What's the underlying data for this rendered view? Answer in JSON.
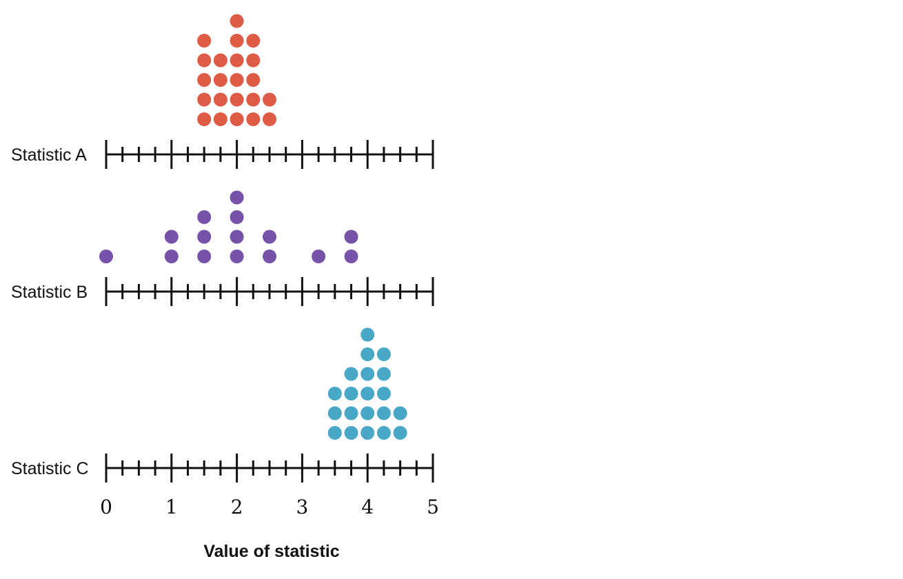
{
  "chart_data": {
    "type": "dot_plot",
    "xlabel": "Value of statistic",
    "xlim": [
      0,
      5
    ],
    "x_ticks_major": [
      0,
      1,
      2,
      3,
      4,
      5
    ],
    "x_tick_labels": [
      "0",
      "1",
      "2",
      "3",
      "4",
      "5"
    ],
    "minor_tick_step": 0.25,
    "grid": false,
    "series": [
      {
        "name": "Statistic A",
        "color": "#de5b45",
        "points": [
          {
            "x": 1.5,
            "count": 5
          },
          {
            "x": 1.75,
            "count": 4
          },
          {
            "x": 2.0,
            "count": 6
          },
          {
            "x": 2.25,
            "count": 5
          },
          {
            "x": 2.5,
            "count": 2
          }
        ]
      },
      {
        "name": "Statistic B",
        "color": "#7653a8",
        "points": [
          {
            "x": 0.0,
            "count": 1
          },
          {
            "x": 1.0,
            "count": 2
          },
          {
            "x": 1.5,
            "count": 3
          },
          {
            "x": 2.0,
            "count": 4
          },
          {
            "x": 2.5,
            "count": 2
          },
          {
            "x": 3.25,
            "count": 1
          },
          {
            "x": 3.75,
            "count": 2
          }
        ]
      },
      {
        "name": "Statistic C",
        "color": "#4aa8c7",
        "points": [
          {
            "x": 3.5,
            "count": 3
          },
          {
            "x": 3.75,
            "count": 4
          },
          {
            "x": 4.0,
            "count": 6
          },
          {
            "x": 4.25,
            "count": 5
          },
          {
            "x": 4.5,
            "count": 2
          }
        ]
      }
    ]
  }
}
